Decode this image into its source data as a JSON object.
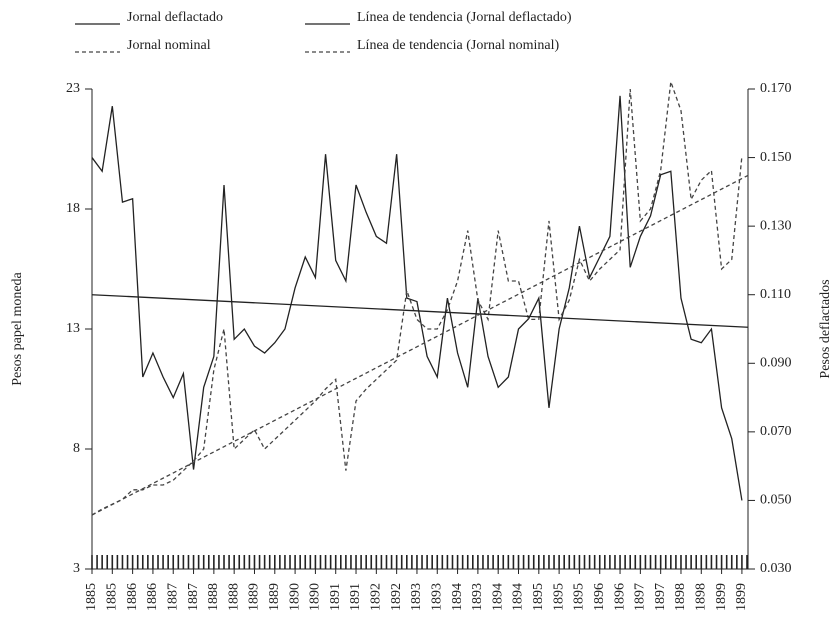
{
  "chart_data": {
    "type": "line",
    "y_label": "Pesos papel moneda",
    "y2_label": "Pesos deflactados",
    "xlim": [
      0,
      32.3
    ],
    "xticks": [
      {
        "value": 0,
        "label": "1885"
      },
      {
        "value": 1,
        "label": "1885"
      },
      {
        "value": 2,
        "label": "1886"
      },
      {
        "value": 3,
        "label": "1886"
      },
      {
        "value": 4,
        "label": "1887"
      },
      {
        "value": 5,
        "label": "1887"
      },
      {
        "value": 6,
        "label": "1888"
      },
      {
        "value": 7,
        "label": "1888"
      },
      {
        "value": 8,
        "label": "1889"
      },
      {
        "value": 9,
        "label": "1889"
      },
      {
        "value": 10,
        "label": "1890"
      },
      {
        "value": 11,
        "label": "1890"
      },
      {
        "value": 12,
        "label": "1891"
      },
      {
        "value": 13,
        "label": "1891"
      },
      {
        "value": 14,
        "label": "1892"
      },
      {
        "value": 15,
        "label": "1892"
      },
      {
        "value": 16,
        "label": "1893"
      },
      {
        "value": 17,
        "label": "1893"
      },
      {
        "value": 18,
        "label": "1894"
      },
      {
        "value": 19,
        "label": "1893"
      },
      {
        "value": 20,
        "label": "1894"
      },
      {
        "value": 21,
        "label": "1894"
      },
      {
        "value": 22,
        "label": "1895"
      },
      {
        "value": 23,
        "label": "1895"
      },
      {
        "value": 24,
        "label": "1895"
      },
      {
        "value": 25,
        "label": "1896"
      },
      {
        "value": 26,
        "label": "1896"
      },
      {
        "value": 27,
        "label": "1897"
      },
      {
        "value": 28,
        "label": "1897"
      },
      {
        "value": 29,
        "label": "1898"
      },
      {
        "value": 30,
        "label": "1898"
      },
      {
        "value": 31,
        "label": "1899"
      },
      {
        "value": 32,
        "label": "1899"
      }
    ],
    "ylim": [
      3,
      23
    ],
    "yticks": [
      3,
      8,
      13,
      18,
      23
    ],
    "y2lim": [
      0.03,
      0.17
    ],
    "y2ticks": [
      {
        "value": 0.03,
        "label": "0.030"
      },
      {
        "value": 0.05,
        "label": "0.050"
      },
      {
        "value": 0.07,
        "label": "0.070"
      },
      {
        "value": 0.09,
        "label": "0.090"
      },
      {
        "value": 0.11,
        "label": "0.110"
      },
      {
        "value": 0.13,
        "label": "0.130"
      },
      {
        "value": 0.15,
        "label": "0.150"
      },
      {
        "value": 0.17,
        "label": "0.170"
      }
    ],
    "legend": "top",
    "series": [
      {
        "name": "Jornal deflactado",
        "color": "#222222",
        "style": "solid",
        "axis": "y2",
        "x": [
          0,
          0.5,
          1,
          1.5,
          2,
          2.5,
          3,
          3.5,
          4,
          4.5,
          5,
          5.5,
          6,
          6.5,
          7,
          7.5,
          8,
          8.5,
          9,
          9.5,
          10,
          10.5,
          11,
          11.5,
          12,
          12.5,
          13,
          13.5,
          14,
          14.5,
          15,
          15.5,
          16,
          16.5,
          17,
          17.5,
          18,
          18.5,
          19,
          19.5,
          20,
          20.5,
          21,
          21.5,
          22,
          22.5,
          23,
          23.5,
          24,
          24.5,
          25,
          25.5,
          26,
          26.5,
          27,
          27.5,
          28,
          28.5,
          29,
          29.5,
          30,
          30.5,
          31,
          31.5,
          32
        ],
        "values": [
          0.15,
          0.146,
          0.165,
          0.137,
          0.138,
          0.086,
          0.093,
          0.086,
          0.08,
          0.087,
          0.059,
          0.083,
          0.092,
          0.142,
          0.097,
          0.1,
          0.095,
          0.093,
          0.096,
          0.1,
          0.112,
          0.121,
          0.115,
          0.151,
          0.12,
          0.114,
          0.142,
          0.134,
          0.127,
          0.125,
          0.151,
          0.109,
          0.108,
          0.092,
          0.086,
          0.109,
          0.093,
          0.083,
          0.109,
          0.092,
          0.083,
          0.086,
          0.1,
          0.103,
          0.109,
          0.077,
          0.1,
          0.112,
          0.13,
          0.115,
          0.121,
          0.127,
          0.168,
          0.118,
          0.127,
          0.133,
          0.145,
          0.146,
          0.109,
          0.097,
          0.096,
          0.1,
          0.077,
          0.068,
          0.05
        ]
      },
      {
        "name": "Jornal nominal",
        "color": "#444444",
        "style": "dashed",
        "axis": "y",
        "x": [
          0,
          0.5,
          1,
          1.5,
          2,
          2.5,
          3,
          3.5,
          4,
          4.5,
          5,
          5.5,
          6,
          6.5,
          7,
          7.5,
          8,
          8.5,
          9,
          9.5,
          10,
          10.5,
          11,
          11.5,
          12,
          12.5,
          13,
          13.5,
          14,
          14.5,
          15,
          15.5,
          16,
          16.5,
          17,
          17.5,
          18,
          18.5,
          19,
          19.5,
          20,
          20.5,
          21,
          21.5,
          22,
          22.5,
          23,
          23.5,
          24,
          24.5,
          25,
          25.5,
          26,
          26.5,
          27,
          27.5,
          28,
          28.5,
          29,
          29.5,
          30,
          30.5,
          31,
          31.5,
          32
        ],
        "values": [
          5.25,
          5.5,
          5.7,
          5.9,
          6.3,
          6.3,
          6.5,
          6.5,
          6.7,
          7.1,
          7.5,
          8.0,
          11.3,
          13.0,
          8.0,
          8.4,
          8.8,
          8.0,
          8.4,
          8.8,
          9.2,
          9.6,
          10.0,
          10.5,
          10.9,
          7.1,
          10.0,
          10.5,
          10.9,
          11.3,
          11.7,
          14.6,
          13.4,
          13.0,
          13.0,
          13.8,
          15.0,
          17.1,
          14.2,
          13.4,
          17.1,
          15.0,
          15.0,
          13.4,
          13.4,
          17.5,
          13.4,
          14.2,
          15.9,
          15.0,
          15.5,
          15.9,
          16.3,
          23.0,
          17.5,
          18.0,
          19.6,
          23.3,
          22.1,
          18.4,
          19.2,
          19.6,
          15.5,
          15.9,
          20.2
        ]
      },
      {
        "name": "Línea de tendencia (Jornal deflactado)",
        "color": "#222222",
        "style": "solid",
        "axis": "y2",
        "x": [
          0,
          32.3
        ],
        "values": [
          0.11,
          0.1005
        ]
      },
      {
        "name": "Línea de tendencia (Jornal nominal)",
        "color": "#444444",
        "style": "dashed",
        "axis": "y",
        "x": [
          0,
          32.3
        ],
        "values": [
          5.25,
          19.4
        ]
      }
    ]
  }
}
